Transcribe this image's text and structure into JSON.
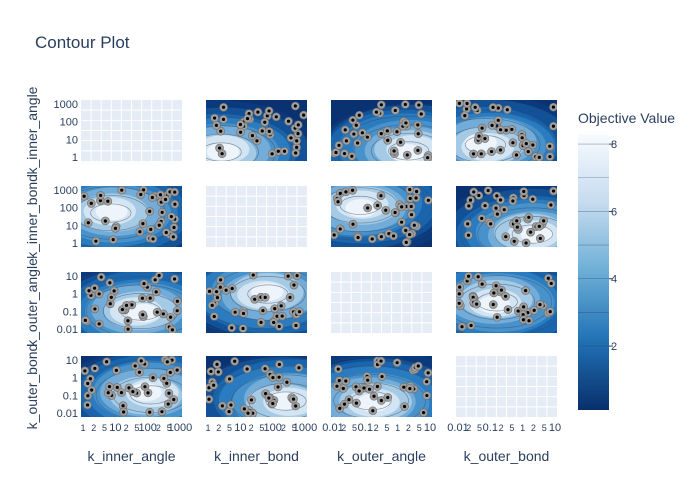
{
  "chart_data": {
    "type": "contour",
    "title": "Contour Plot",
    "params": [
      "k_inner_angle",
      "k_inner_bond",
      "k_outer_angle",
      "k_outer_bond"
    ],
    "axis_ticks": {
      "k_inner_angle": [
        "1",
        "2",
        "5",
        "10",
        "2",
        "5",
        "100",
        "2",
        "5",
        "1000"
      ],
      "k_inner_bond": [
        "1",
        "2",
        "5",
        "10",
        "2",
        "5",
        "100",
        "2",
        "5",
        "1000"
      ],
      "k_outer_angle": [
        "0.01",
        "2",
        "5",
        "0.1",
        "2",
        "5",
        "1",
        "2",
        "5",
        "10"
      ],
      "k_outer_bond": [
        "0.01",
        "2",
        "5",
        "0.1",
        "2",
        "5",
        "1",
        "2",
        "5",
        "10"
      ]
    },
    "y_axis_ticks": {
      "k_inner_angle": [
        "1000",
        "100",
        "10",
        "1"
      ],
      "k_inner_bond": [
        "1000",
        "100",
        "10",
        "1"
      ],
      "k_outer_angle": [
        "10",
        "1",
        "0.1",
        "0.01"
      ],
      "k_outer_bond": [
        "10",
        "1",
        "0.1",
        "0.01"
      ]
    },
    "colorbar": {
      "title": "Objective Value",
      "ticks": [
        "8",
        "6",
        "4",
        "2"
      ],
      "tick_values": [
        8,
        6,
        4,
        2
      ],
      "range": [
        0.1,
        8.3
      ],
      "colorscale": [
        "#f7fbff",
        "#c6dbef",
        "#6baed6",
        "#2171b5",
        "#08306b"
      ]
    },
    "colors": {
      "plot_bg": "#e5ecf6",
      "marker": "#a0a0a0",
      "marker_core": "#000000"
    },
    "series": [
      {
        "name": "k_inner_bond",
        "cells": []
      }
    ]
  }
}
